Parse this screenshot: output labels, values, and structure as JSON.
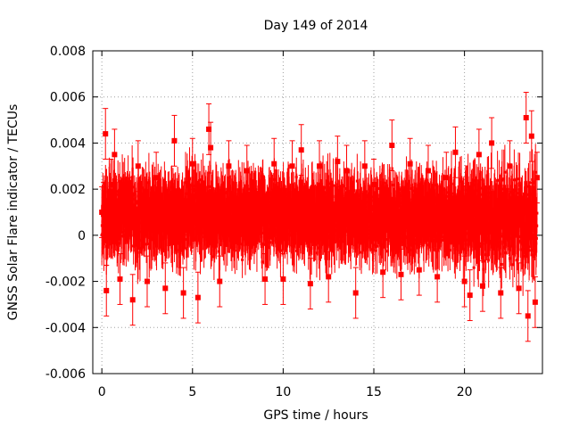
{
  "chart_data": {
    "type": "scatter",
    "title": "Day 149 of 2014",
    "xlabel": "GPS time / hours",
    "ylabel": "GNSS Solar Flare indicator / TECUs",
    "xlim": [
      -0.5,
      24.3
    ],
    "ylim": [
      -0.006,
      0.008
    ],
    "xticks": [
      0,
      5,
      10,
      15,
      20
    ],
    "xtick_labels": [
      "0",
      "5",
      "10",
      "15",
      "20"
    ],
    "yticks": [
      -0.006,
      -0.004,
      -0.002,
      0,
      0.002,
      0.004,
      0.006,
      0.008
    ],
    "ytick_labels": [
      "-0.006",
      "-0.004",
      "-0.002",
      "0",
      "0.002",
      "0.004",
      "0.006",
      "0.008"
    ],
    "grid": true,
    "legend": "none",
    "series": [
      {
        "color": "#ff0000",
        "marker": "square",
        "error_bars": true,
        "typical_error": 0.0011,
        "points": [
          [
            0.0,
            0.001
          ],
          [
            0.1,
            0.0012
          ],
          [
            0.2,
            0.0044
          ],
          [
            0.25,
            -0.0024
          ],
          [
            0.5,
            0.0022
          ],
          [
            0.7,
            0.0035
          ],
          [
            1.0,
            -0.0019
          ],
          [
            1.5,
            0.0014
          ],
          [
            1.7,
            -0.0028
          ],
          [
            2.0,
            0.003
          ],
          [
            2.5,
            -0.002
          ],
          [
            3.0,
            0.0025
          ],
          [
            3.5,
            -0.0023
          ],
          [
            4.0,
            0.0041
          ],
          [
            4.5,
            -0.0025
          ],
          [
            5.0,
            0.0031
          ],
          [
            5.3,
            -0.0027
          ],
          [
            5.9,
            0.0046
          ],
          [
            6.0,
            0.0038
          ],
          [
            6.5,
            -0.002
          ],
          [
            7.0,
            0.003
          ],
          [
            8.0,
            0.0028
          ],
          [
            9.0,
            -0.0019
          ],
          [
            9.5,
            0.0031
          ],
          [
            10.0,
            -0.0019
          ],
          [
            10.5,
            0.003
          ],
          [
            11.0,
            0.0037
          ],
          [
            11.5,
            -0.0021
          ],
          [
            12.0,
            0.003
          ],
          [
            12.5,
            -0.0018
          ],
          [
            13.0,
            0.0032
          ],
          [
            13.5,
            0.0028
          ],
          [
            14.0,
            -0.0025
          ],
          [
            14.5,
            0.003
          ],
          [
            15.0,
            0.0022
          ],
          [
            15.5,
            -0.0016
          ],
          [
            16.0,
            0.0039
          ],
          [
            16.5,
            -0.0017
          ],
          [
            17.0,
            0.0031
          ],
          [
            17.5,
            -0.0015
          ],
          [
            18.0,
            0.0028
          ],
          [
            18.5,
            -0.0018
          ],
          [
            19.0,
            0.0025
          ],
          [
            19.5,
            0.0036
          ],
          [
            20.0,
            -0.002
          ],
          [
            20.3,
            -0.0026
          ],
          [
            20.8,
            0.0035
          ],
          [
            21.0,
            -0.0022
          ],
          [
            21.5,
            0.004
          ],
          [
            22.0,
            -0.0025
          ],
          [
            22.5,
            0.003
          ],
          [
            23.0,
            -0.0023
          ],
          [
            23.4,
            0.0051
          ],
          [
            23.5,
            -0.0035
          ],
          [
            23.7,
            0.0043
          ],
          [
            23.9,
            -0.0029
          ],
          [
            24.0,
            0.0025
          ]
        ]
      }
    ]
  }
}
